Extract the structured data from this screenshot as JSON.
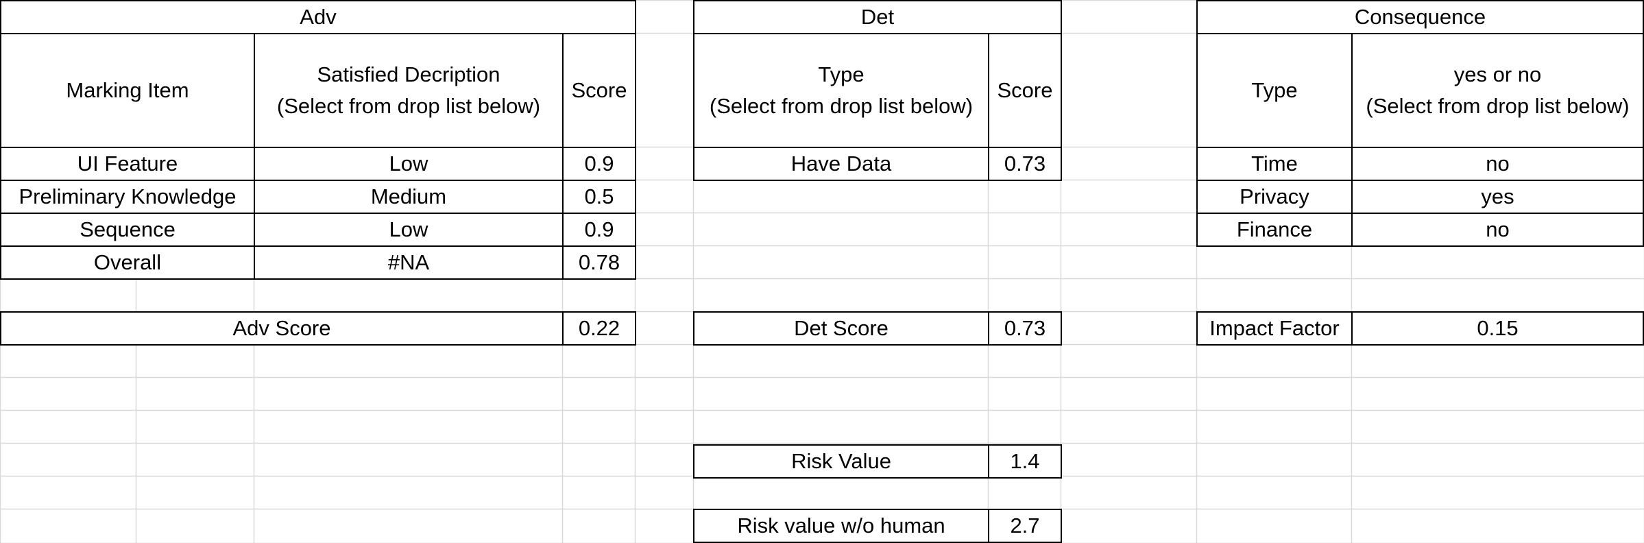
{
  "adv": {
    "title": "Adv",
    "headers": {
      "marking_item": "Marking Item",
      "description_line1": "Satisfied Decription",
      "description_line2": "(Select from drop list below)",
      "score": "Score"
    },
    "rows": [
      {
        "item": "UI Feature",
        "description": "Low",
        "score": "0.9"
      },
      {
        "item": "Preliminary Knowledge",
        "description": "Medium",
        "score": "0.5"
      },
      {
        "item": "Sequence",
        "description": "Low",
        "score": "0.9"
      },
      {
        "item": "Overall",
        "description": "#NA",
        "score": "0.78"
      }
    ],
    "summary_label": "Adv Score",
    "summary_value": "0.22"
  },
  "det": {
    "title": "Det",
    "headers": {
      "type_line1": "Type",
      "type_line2": "(Select from drop list below)",
      "score": "Score"
    },
    "rows": [
      {
        "type": "Have Data",
        "score": "0.73"
      }
    ],
    "summary_label": "Det Score",
    "summary_value": "0.73"
  },
  "consequence": {
    "title": "Consequence",
    "headers": {
      "type": "Type",
      "yesno_line1": "yes or no",
      "yesno_line2": "(Select from drop list below)"
    },
    "rows": [
      {
        "type": "Time",
        "value": "no"
      },
      {
        "type": "Privacy",
        "value": "yes"
      },
      {
        "type": "Finance",
        "value": "no"
      }
    ],
    "summary_label": "Impact Factor",
    "summary_value": "0.15"
  },
  "risk": {
    "risk_value_label": "Risk Value",
    "risk_value": "1.4",
    "risk_wo_human_label": "Risk value w/o human",
    "risk_wo_human_value": "2.7"
  },
  "colors": {
    "gridline": "#d9d9d9",
    "border": "#000000",
    "background": "#ffffff"
  }
}
